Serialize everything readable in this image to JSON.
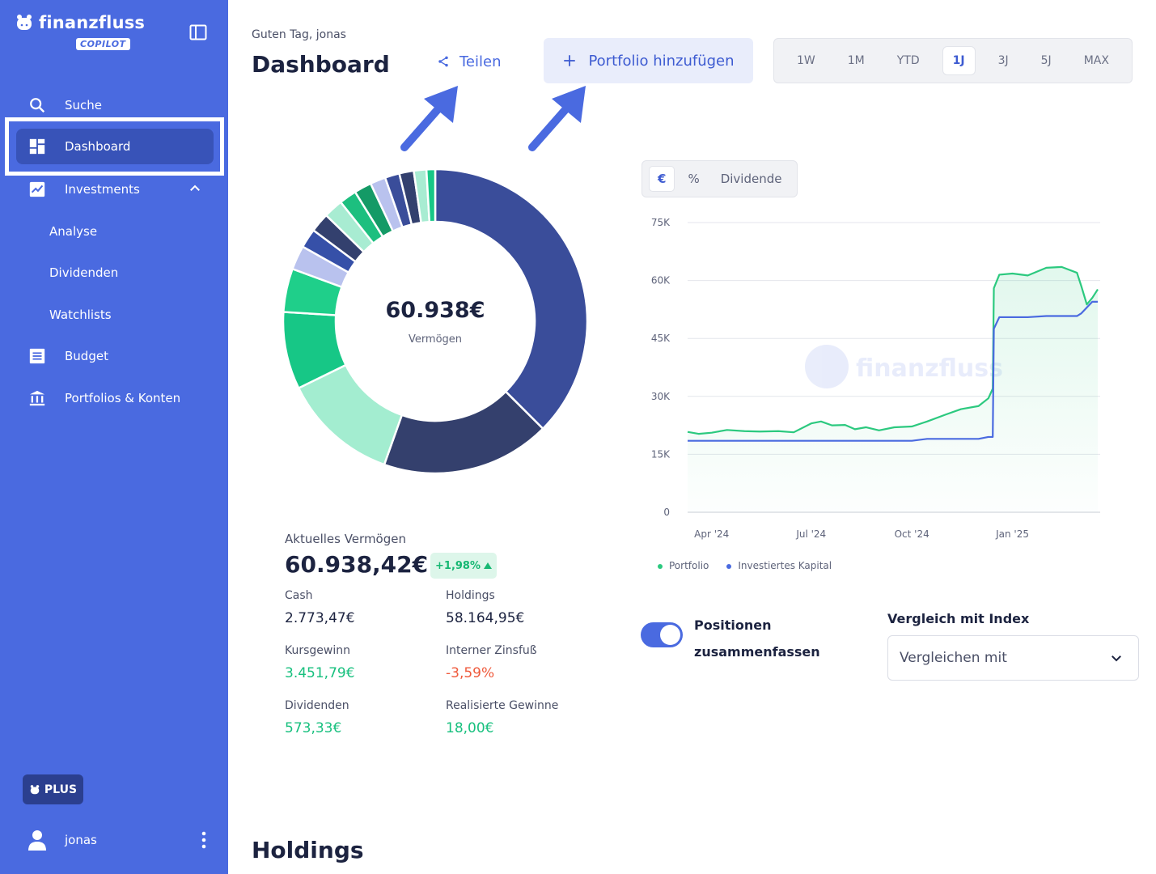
{
  "brand": {
    "name": "finanzfluss",
    "badge": "COPILOT"
  },
  "sidebar": {
    "items": [
      {
        "label": "Suche",
        "icon": "search-icon"
      },
      {
        "label": "Dashboard",
        "icon": "dashboard-icon",
        "active": true
      },
      {
        "label": "Investments",
        "icon": "chart-line-icon",
        "expanded": true
      },
      {
        "label": "Analyse"
      },
      {
        "label": "Dividenden"
      },
      {
        "label": "Watchlists"
      },
      {
        "label": "Budget",
        "icon": "list-icon"
      },
      {
        "label": "Portfolios & Konten",
        "icon": "bank-icon"
      }
    ],
    "plan_badge": "PLUS",
    "user": {
      "name": "jonas"
    }
  },
  "header": {
    "greeting": "Guten Tag, jonas",
    "title": "Dashboard",
    "share_label": "Teilen",
    "add_portfolio_label": "Portfolio hinzufügen",
    "ranges": [
      "1W",
      "1M",
      "YTD",
      "1J",
      "3J",
      "5J",
      "MAX"
    ],
    "selected_range": "1J"
  },
  "donut": {
    "value": "60.938€",
    "label": "Vermögen",
    "segments": [
      {
        "value": 36.5,
        "color": "#3a4d9a"
      },
      {
        "value": 17.5,
        "color": "#34406d"
      },
      {
        "value": 12.0,
        "color": "#a3edd0"
      },
      {
        "value": 8.0,
        "color": "#17c786"
      },
      {
        "value": 4.5,
        "color": "#1fcf8a"
      },
      {
        "value": 2.5,
        "color": "#b9c2ee"
      },
      {
        "value": 2.0,
        "color": "#3650a8"
      },
      {
        "value": 2.0,
        "color": "#33406e"
      },
      {
        "value": 2.0,
        "color": "#a8ecd2"
      },
      {
        "value": 1.8,
        "color": "#1dbf7f"
      },
      {
        "value": 1.8,
        "color": "#149a66"
      },
      {
        "value": 1.6,
        "color": "#b9c2ee"
      },
      {
        "value": 1.5,
        "color": "#3a4d9a"
      },
      {
        "value": 1.5,
        "color": "#33406e"
      },
      {
        "value": 1.3,
        "color": "#a8ecd2"
      },
      {
        "value": 0.9,
        "color": "#17c786"
      }
    ]
  },
  "stats": {
    "title": "Aktuelles Vermögen",
    "total": "60.938,42€",
    "change": "+1,98%",
    "items": [
      {
        "label": "Cash",
        "value": "2.773,47€",
        "tone": "neutral"
      },
      {
        "label": "Holdings",
        "value": "58.164,95€",
        "tone": "neutral"
      },
      {
        "label": "Kursgewinn",
        "value": "3.451,79€",
        "tone": "green"
      },
      {
        "label": "Interner Zinsfuß",
        "value": "-3,59%",
        "tone": "red"
      },
      {
        "label": "Dividenden",
        "value": "573,33€",
        "tone": "green"
      },
      {
        "label": "Realisierte Gewinne",
        "value": "18,00€",
        "tone": "green"
      }
    ]
  },
  "chart_modes": [
    "€",
    "%",
    "Dividende"
  ],
  "selected_mode": "€",
  "watermark": "finanzfluss",
  "chart_data": {
    "type": "line",
    "x": [
      "2024-03-10",
      "2024-03-20",
      "2024-04-01",
      "2024-04-15",
      "2024-05-01",
      "2024-05-15",
      "2024-06-01",
      "2024-06-15",
      "2024-07-01",
      "2024-07-10",
      "2024-07-20",
      "2024-08-01",
      "2024-08-10",
      "2024-08-20",
      "2024-09-01",
      "2024-09-15",
      "2024-10-01",
      "2024-10-15",
      "2024-11-01",
      "2024-11-15",
      "2024-12-01",
      "2024-12-10",
      "2024-12-14",
      "2024-12-15",
      "2024-12-20",
      "2025-01-01",
      "2025-01-15",
      "2025-02-01",
      "2025-02-15",
      "2025-03-01",
      "2025-03-05",
      "2025-03-10",
      "2025-03-15",
      "2025-03-20"
    ],
    "series": [
      {
        "name": "Portfolio",
        "color": "#2cc97f",
        "values": [
          20800,
          20300,
          20600,
          21300,
          21000,
          20900,
          21000,
          20700,
          23000,
          23500,
          22500,
          22600,
          21500,
          22000,
          21200,
          22000,
          22200,
          23500,
          25300,
          26700,
          27500,
          29500,
          32000,
          58000,
          61500,
          61800,
          61300,
          63300,
          63500,
          62000,
          58500,
          53800,
          55500,
          57700
        ]
      },
      {
        "name": "Investiertes Kapital",
        "color": "#4a6ae0",
        "values": [
          18500,
          18500,
          18500,
          18500,
          18500,
          18500,
          18500,
          18500,
          18500,
          18500,
          18500,
          18500,
          18500,
          18500,
          18500,
          18500,
          18500,
          19000,
          19000,
          19000,
          19000,
          19500,
          19500,
          47500,
          50500,
          50500,
          50500,
          50800,
          50800,
          50800,
          51500,
          53000,
          54500,
          54500
        ]
      }
    ],
    "ylim": [
      0,
      75000
    ],
    "yticks": [
      {
        "v": 0,
        "label": "0"
      },
      {
        "v": 15000,
        "label": "15K"
      },
      {
        "v": 30000,
        "label": "30K"
      },
      {
        "v": 45000,
        "label": "45K"
      },
      {
        "v": 60000,
        "label": "60K"
      },
      {
        "v": 75000,
        "label": "75K"
      }
    ],
    "xticks": [
      {
        "date": "2024-04-01",
        "label": "Apr '24"
      },
      {
        "date": "2024-07-01",
        "label": "Jul '24"
      },
      {
        "date": "2024-10-01",
        "label": "Oct '24"
      },
      {
        "date": "2025-01-01",
        "label": "Jan '25"
      }
    ],
    "legend": "bottom-left",
    "grid": true
  },
  "toggle": {
    "label": "Positionen zusammenfassen",
    "on": true
  },
  "compare": {
    "label": "Vergleich mit Index",
    "placeholder": "Vergleichen mit"
  },
  "holdings_title": "Holdings"
}
